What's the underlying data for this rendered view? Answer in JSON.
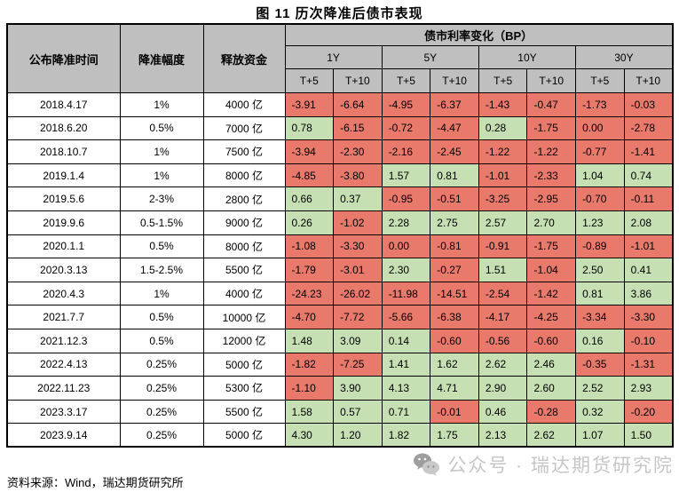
{
  "chart_data": {
    "type": "table",
    "title": "图 11 历次降准后债市表现",
    "header": {
      "date": "公布降准时间",
      "cut": "降准幅度",
      "funds": "释放资金",
      "group": "债市利率变化（BP）",
      "tenors": [
        "1Y",
        "5Y",
        "10Y",
        "30Y"
      ],
      "windows": [
        "T+5",
        "T+10"
      ]
    },
    "column_order": [
      "公布降准时间",
      "降准幅度",
      "释放资金",
      "1Y T+5",
      "1Y T+10",
      "5Y T+5",
      "5Y T+10",
      "10Y T+5",
      "10Y T+10",
      "30Y T+5",
      "30Y T+10"
    ],
    "rows": [
      {
        "date": "2018.4.17",
        "cut": "1%",
        "funds": "4000 亿",
        "bp": [
          -3.91,
          -6.64,
          -4.95,
          -6.37,
          -1.43,
          -0.47,
          -1.73,
          -0.03
        ]
      },
      {
        "date": "2018.6.20",
        "cut": "0.5%",
        "funds": "7000 亿",
        "bp": [
          0.78,
          -6.15,
          -0.72,
          -4.47,
          0.28,
          -1.75,
          0.0,
          -2.78
        ]
      },
      {
        "date": "2018.10.7",
        "cut": "1%",
        "funds": "7500 亿",
        "bp": [
          -3.94,
          -2.3,
          -2.16,
          -2.45,
          -1.22,
          -1.22,
          -0.77,
          -1.41
        ]
      },
      {
        "date": "2019.1.4",
        "cut": "1%",
        "funds": "8000 亿",
        "bp": [
          -4.85,
          -3.8,
          1.57,
          0.81,
          -1.01,
          -2.33,
          1.04,
          0.74
        ]
      },
      {
        "date": "2019.5.6",
        "cut": "2-3%",
        "funds": "2800 亿",
        "bp": [
          0.66,
          0.37,
          -0.95,
          -0.51,
          -3.25,
          -2.95,
          -0.7,
          -0.11
        ]
      },
      {
        "date": "2019.9.6",
        "cut": "0.5-1.5%",
        "funds": "9000 亿",
        "bp": [
          0.26,
          -1.02,
          2.28,
          2.75,
          2.57,
          2.7,
          1.23,
          2.08
        ]
      },
      {
        "date": "2020.1.1",
        "cut": "0.5%",
        "funds": "8000 亿",
        "bp": [
          -1.08,
          -3.3,
          0.0,
          -0.81,
          -0.91,
          -1.75,
          -0.89,
          -1.01
        ]
      },
      {
        "date": "2020.3.13",
        "cut": "1.5-2.5%",
        "funds": "5500 亿",
        "bp": [
          -1.79,
          -3.01,
          2.3,
          -0.27,
          1.51,
          -1.04,
          2.5,
          0.41
        ]
      },
      {
        "date": "2020.4.3",
        "cut": "1%",
        "funds": "4000 亿",
        "bp": [
          -24.23,
          -26.02,
          -11.98,
          -14.51,
          -2.54,
          -1.42,
          0.81,
          3.86
        ]
      },
      {
        "date": "2021.7.7",
        "cut": "0.5%",
        "funds": "10000 亿",
        "bp": [
          -4.7,
          -7.72,
          -5.66,
          -6.38,
          -4.17,
          -4.25,
          -3.34,
          -3.3
        ]
      },
      {
        "date": "2021.12.3",
        "cut": "0.5%",
        "funds": "12000 亿",
        "bp": [
          1.48,
          3.09,
          0.14,
          -0.6,
          -0.56,
          -0.6,
          0.16,
          -0.1
        ]
      },
      {
        "date": "2022.4.13",
        "cut": "0.25%",
        "funds": "5000 亿",
        "bp": [
          -1.82,
          -7.25,
          1.41,
          1.62,
          2.62,
          2.46,
          -0.35,
          -1.31
        ]
      },
      {
        "date": "2022.11.23",
        "cut": "0.25%",
        "funds": "5300 亿",
        "bp": [
          -1.1,
          3.9,
          4.13,
          4.71,
          2.9,
          2.6,
          2.52,
          2.93
        ]
      },
      {
        "date": "2023.3.17",
        "cut": "0.25%",
        "funds": "5500 亿",
        "bp": [
          1.58,
          0.57,
          0.71,
          -0.01,
          0.46,
          -0.28,
          0.32,
          -0.2
        ]
      },
      {
        "date": "2023.9.14",
        "cut": "0.25%",
        "funds": "5000 亿",
        "bp": [
          4.3,
          1.2,
          1.82,
          1.75,
          2.13,
          2.62,
          1.07,
          1.5
        ]
      }
    ],
    "color_rule": "bp value > 0 shaded green, value <= 0 shaded red",
    "value_format": "2 decimals, unit BP"
  },
  "colors": {
    "positive_bg": "#C6E0B4",
    "negative_bg": "#E8796B",
    "header_bg": "#BFBFBF",
    "border": "#000000",
    "watermark": "#C6C6C6"
  },
  "footer": {
    "source": "资料来源：Wind，瑞达期货研究所"
  },
  "watermark": {
    "icon": "wechat-icon",
    "text": "公众号 · 瑞达期货研究院"
  }
}
